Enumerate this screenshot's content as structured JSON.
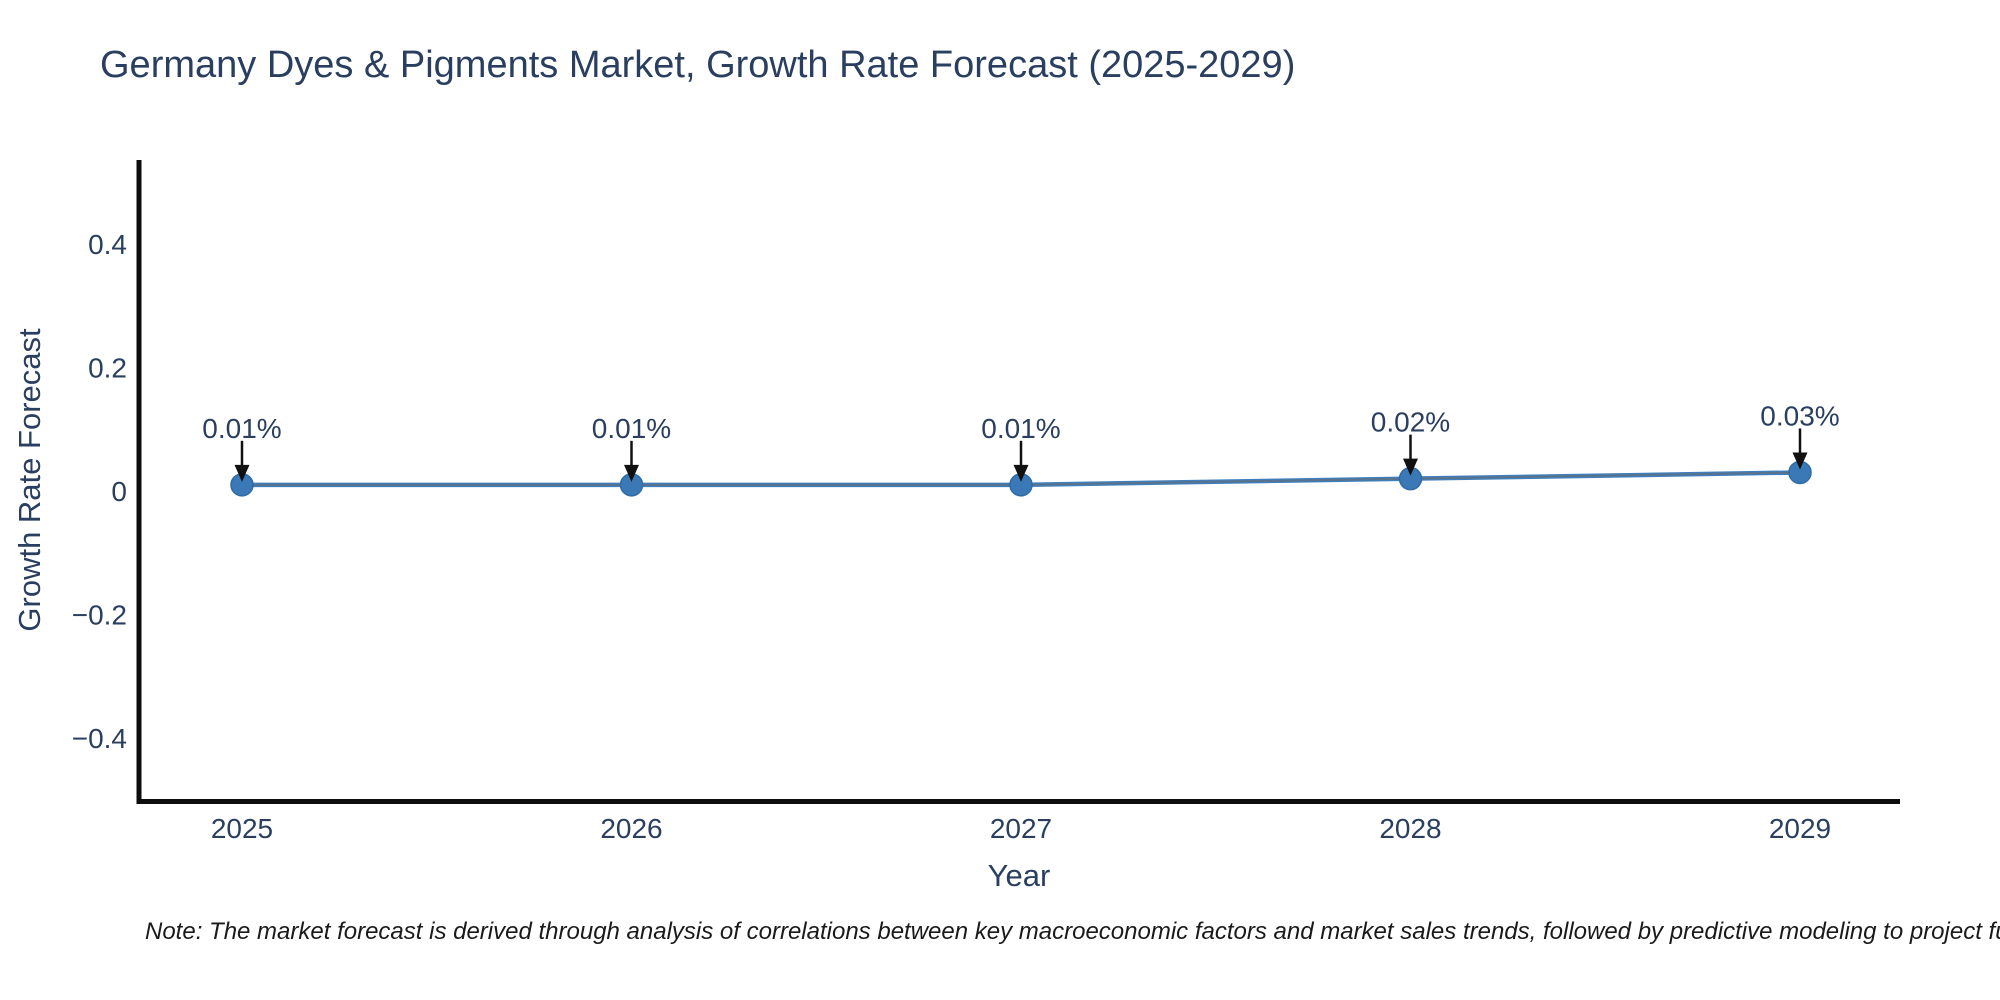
{
  "title": "Germany Dyes & Pigments Market, Growth Rate Forecast (2025-2029)",
  "note": "Note: The market forecast is derived through analysis of correlations between key macroeconomic factors and market sales trends, followed by predictive modeling to project future sales",
  "chart_data": {
    "type": "line",
    "title": "Germany Dyes & Pigments Market, Growth Rate Forecast (2025-2029)",
    "xlabel": "Year",
    "ylabel": "Growth Rate Forecast",
    "x": [
      2025,
      2026,
      2027,
      2028,
      2029
    ],
    "series": [
      {
        "name": "Growth Rate Forecast",
        "values": [
          0.01,
          0.01,
          0.01,
          0.02,
          0.03
        ]
      }
    ],
    "point_labels": [
      "0.01%",
      "0.01%",
      "0.01%",
      "0.02%",
      "0.03%"
    ],
    "xtick_labels": [
      "2025",
      "2026",
      "2027",
      "2028",
      "2029"
    ],
    "ytick_values": [
      0.4,
      0.2,
      0,
      -0.2,
      -0.4
    ],
    "ytick_labels": [
      "0.4",
      "0.2",
      "0",
      "−0.2",
      "−0.4"
    ],
    "ylim": [
      -0.52,
      0.55
    ],
    "grid": false,
    "legend": "none",
    "annotations": "value labels with downward black arrows above each data point",
    "colors": {
      "line": "#3e7fbf",
      "line_core": "#5f7183",
      "marker": "#3b79b6",
      "marker_edge": "#2f6ba8",
      "axis": "#0d0d0d",
      "text": "#2a3f5f",
      "arrow": "#111111",
      "background": "#ffffff"
    }
  }
}
